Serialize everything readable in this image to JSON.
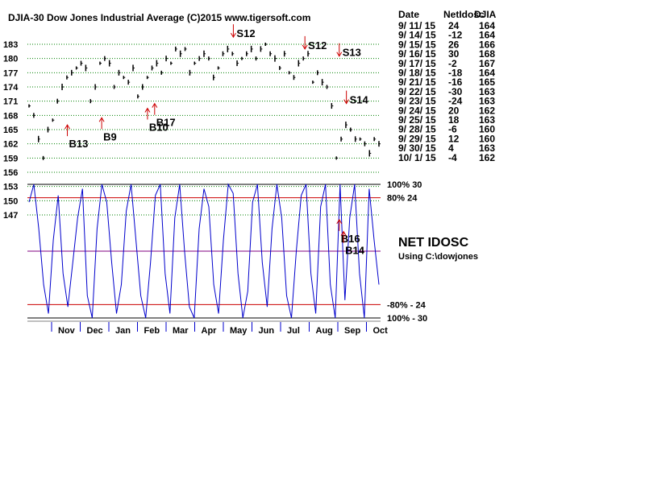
{
  "chart_data": {
    "type": "line",
    "title": "DJIA-30  Dow Jones Industrial Average   (C)2015 www.tigersoft.com",
    "price_axis": {
      "ticks": [
        "183",
        "180",
        "177",
        "174",
        "171",
        "168",
        "165",
        "162",
        "159",
        "156",
        "153",
        "150",
        "147"
      ],
      "range": [
        145,
        185
      ]
    },
    "months": [
      "Nov",
      "Dec",
      "Jan",
      "Feb",
      "Mar",
      "Apr",
      "May",
      "Jun",
      "Jul",
      "Aug",
      "Sep",
      "Oct"
    ],
    "price_series": {
      "name": "DJIA",
      "values": [
        170,
        168,
        163,
        159,
        165,
        167,
        171,
        174,
        176,
        177,
        178,
        179,
        178,
        171,
        174,
        179,
        180,
        179,
        174,
        177,
        176,
        175,
        178,
        172,
        174,
        176,
        178,
        179,
        177,
        180,
        179,
        182,
        181,
        182,
        177,
        179,
        180,
        181,
        180,
        176,
        178,
        181,
        182,
        181,
        179,
        180,
        181,
        182,
        180,
        182,
        183,
        181,
        180,
        178,
        181,
        177,
        176,
        179,
        180,
        181,
        175,
        177,
        175,
        174,
        170,
        159,
        163,
        166,
        165,
        163,
        163,
        162,
        160,
        163,
        162
      ]
    },
    "oscillator": {
      "name": "NET IDOSC",
      "levels": [
        {
          "label": "100%  30",
          "value": 30,
          "color": "#000000"
        },
        {
          "label": "80%  24",
          "value": 24,
          "color": "#cc0000"
        },
        {
          "label": "",
          "value": 0,
          "color": "#800080"
        },
        {
          "label": "-80%  - 24",
          "value": -24,
          "color": "#cc0000"
        },
        {
          "label": "100%  - 30",
          "value": -30,
          "color": "#000000"
        }
      ],
      "values": [
        22,
        30,
        10,
        -15,
        -28,
        5,
        25,
        -10,
        -25,
        -5,
        15,
        28,
        -20,
        -30,
        10,
        30,
        22,
        -5,
        -28,
        -15,
        18,
        30,
        5,
        -20,
        -30,
        -5,
        25,
        30,
        -10,
        -28,
        15,
        30,
        0,
        -25,
        -30,
        10,
        28,
        20,
        -15,
        -28,
        5,
        30,
        26,
        -10,
        -30,
        -18,
        22,
        30,
        -5,
        -25,
        10,
        30,
        15,
        -20,
        -30,
        0,
        25,
        30,
        -10,
        -28,
        20,
        30,
        -15,
        -30,
        30,
        -22,
        15,
        30,
        -10,
        -30,
        28,
        5,
        -15
      ]
    },
    "signals": [
      {
        "label": "S12",
        "dir": "sell",
        "month_pos": 7.35,
        "price": 184.5
      },
      {
        "label": "S12",
        "dir": "sell",
        "month_pos": 9.85,
        "price": 182.0
      },
      {
        "label": "S13",
        "dir": "sell",
        "month_pos": 11.05,
        "price": 180.5
      },
      {
        "label": "S14",
        "dir": "sell",
        "month_pos": 11.3,
        "price": 170.5
      },
      {
        "label": "B13",
        "dir": "buy",
        "month_pos": 1.55,
        "price": 166.0
      },
      {
        "label": "B9",
        "dir": "buy",
        "month_pos": 2.75,
        "price": 167.5
      },
      {
        "label": "B10",
        "dir": "buy",
        "month_pos": 4.35,
        "price": 169.5
      },
      {
        "label": "B17",
        "dir": "buy",
        "month_pos": 4.6,
        "price": 170.5
      },
      {
        "label": "B16",
        "dir": "buy",
        "month_pos": 11.05,
        "price": 146.0
      },
      {
        "label": "B14",
        "dir": "buy",
        "month_pos": 11.2,
        "price": 143.5
      }
    ],
    "osc_title": "NET IDOSC",
    "osc_subtitle": "Using C:\\dowjones",
    "table": {
      "header": [
        "Date",
        "NetIdosc",
        "DJIA"
      ],
      "rows": [
        [
          "9/ 11/ 15",
          "24",
          "164"
        ],
        [
          "9/ 14/ 15",
          "-12",
          "164"
        ],
        [
          "9/ 15/ 15",
          "26",
          "166"
        ],
        [
          "9/ 16/ 15",
          "30",
          "168"
        ],
        [
          "9/ 17/ 15",
          "-2",
          "167"
        ],
        [
          "9/ 18/ 15",
          "-18",
          "164"
        ],
        [
          "9/ 21/ 15",
          "-16",
          "165"
        ],
        [
          "9/ 22/ 15",
          "-30",
          "163"
        ],
        [
          "9/ 23/ 15",
          "-24",
          "163"
        ],
        [
          "9/ 24/ 15",
          "20",
          "162"
        ],
        [
          "9/ 25/ 15",
          "18",
          "163"
        ],
        [
          "9/ 28/ 15",
          "-6",
          "160"
        ],
        [
          "9/ 29/ 15",
          "12",
          "160"
        ],
        [
          "9/ 30/ 15",
          "4",
          "163"
        ],
        [
          "10/ 1/ 15",
          "-4",
          "162"
        ]
      ]
    },
    "colors": {
      "price": "#000000",
      "oscillator": "#0000cc",
      "grid": "#008000",
      "buy_arrow": "#cc0000",
      "sell_arrow": "#cc0000"
    }
  }
}
